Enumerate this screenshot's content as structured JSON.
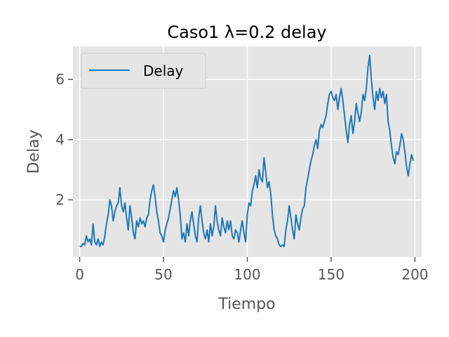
{
  "chart_data": {
    "type": "line",
    "title": "Caso1 λ=0.2 delay",
    "xlabel": "Tiempo",
    "ylabel": "Delay",
    "xlim": [
      -4,
      204
    ],
    "ylim": [
      0.1,
      7.1
    ],
    "xticks": [
      0,
      50,
      100,
      150,
      200
    ],
    "yticks": [
      2,
      4,
      6
    ],
    "grid": true,
    "legend_position": "upper-left",
    "colors": {
      "background": "#e5e5e5",
      "grid": "#ffffff",
      "line": "#1f77b4"
    },
    "series": [
      {
        "name": "Delay",
        "x": [
          0,
          1,
          2,
          3,
          4,
          5,
          6,
          7,
          8,
          9,
          10,
          11,
          12,
          13,
          14,
          15,
          16,
          17,
          18,
          19,
          20,
          21,
          22,
          23,
          24,
          25,
          26,
          27,
          28,
          29,
          30,
          31,
          32,
          33,
          34,
          35,
          36,
          37,
          38,
          39,
          40,
          41,
          42,
          43,
          44,
          45,
          46,
          47,
          48,
          49,
          50,
          51,
          52,
          53,
          54,
          55,
          56,
          57,
          58,
          59,
          60,
          61,
          62,
          63,
          64,
          65,
          66,
          67,
          68,
          69,
          70,
          71,
          72,
          73,
          74,
          75,
          76,
          77,
          78,
          79,
          80,
          81,
          82,
          83,
          84,
          85,
          86,
          87,
          88,
          89,
          90,
          91,
          92,
          93,
          94,
          95,
          96,
          97,
          98,
          99,
          100,
          101,
          102,
          103,
          104,
          105,
          106,
          107,
          108,
          109,
          110,
          111,
          112,
          113,
          114,
          115,
          116,
          117,
          118,
          119,
          120,
          121,
          122,
          123,
          124,
          125,
          126,
          127,
          128,
          129,
          130,
          131,
          132,
          133,
          134,
          135,
          136,
          137,
          138,
          139,
          140,
          141,
          142,
          143,
          144,
          145,
          146,
          147,
          148,
          149,
          150,
          151,
          152,
          153,
          154,
          155,
          156,
          157,
          158,
          159,
          160,
          161,
          162,
          163,
          164,
          165,
          166,
          167,
          168,
          169,
          170,
          171,
          172,
          173,
          174,
          175,
          176,
          177,
          178,
          179,
          180,
          181,
          182,
          183,
          184,
          185,
          186,
          187,
          188,
          189,
          190,
          191,
          192,
          193,
          194,
          195,
          196,
          197,
          198,
          199
        ],
        "y": [
          0.45,
          0.45,
          0.55,
          0.5,
          0.8,
          0.6,
          0.7,
          0.5,
          1.2,
          0.6,
          0.5,
          0.7,
          0.45,
          0.6,
          0.5,
          0.8,
          1.2,
          1.5,
          2.0,
          1.8,
          1.3,
          1.6,
          1.8,
          1.9,
          2.4,
          1.8,
          1.6,
          1.9,
          1.4,
          1.0,
          1.8,
          1.4,
          0.9,
          0.7,
          1.3,
          1.1,
          1.4,
          1.2,
          1.3,
          1.1,
          1.4,
          1.5,
          2.0,
          2.3,
          2.5,
          2.1,
          1.6,
          1.3,
          0.9,
          0.8,
          0.6,
          1.0,
          1.2,
          1.4,
          1.7,
          2.0,
          2.3,
          2.1,
          2.4,
          2.0,
          1.5,
          0.7,
          0.9,
          0.6,
          1.2,
          0.8,
          1.3,
          1.6,
          1.2,
          0.8,
          0.6,
          1.4,
          1.8,
          1.3,
          0.9,
          0.7,
          1.0,
          0.6,
          1.2,
          0.8,
          1.1,
          1.8,
          1.3,
          1.0,
          0.8,
          1.4,
          1.1,
          0.9,
          1.3,
          1.0,
          1.3,
          0.8,
          0.7,
          1.0,
          0.9,
          0.6,
          1.0,
          1.3,
          0.9,
          0.6,
          1.5,
          1.9,
          1.8,
          2.3,
          2.5,
          2.8,
          2.4,
          3.0,
          2.7,
          2.6,
          3.4,
          2.9,
          2.4,
          2.6,
          2.2,
          1.5,
          1.0,
          0.8,
          0.7,
          0.5,
          0.45,
          0.5,
          0.45,
          1.0,
          1.3,
          1.8,
          1.4,
          1.0,
          0.7,
          1.5,
          1.2,
          1.0,
          1.4,
          1.7,
          1.8,
          2.4,
          2.7,
          3.0,
          3.3,
          3.5,
          3.8,
          4.0,
          3.7,
          4.3,
          4.5,
          4.4,
          4.6,
          4.8,
          5.2,
          5.5,
          5.6,
          5.4,
          5.3,
          5.5,
          5.0,
          5.4,
          5.7,
          5.3,
          4.8,
          4.3,
          3.9,
          4.5,
          4.8,
          4.2,
          4.6,
          5.2,
          4.9,
          4.6,
          4.9,
          5.5,
          5.3,
          5.7,
          6.4,
          6.8,
          6.0,
          5.4,
          5.0,
          5.6,
          5.3,
          5.7,
          5.4,
          5.6,
          5.2,
          5.5,
          4.6,
          4.3,
          3.8,
          3.4,
          3.2,
          3.6,
          3.5,
          3.8,
          4.2,
          4.0,
          3.6,
          3.1,
          2.8,
          3.2,
          3.5,
          3.3
        ]
      }
    ]
  }
}
